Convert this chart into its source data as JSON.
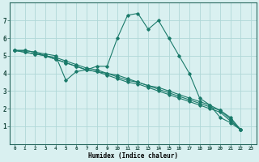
{
  "xlabel": "Humidex (Indice chaleur)",
  "ylabel": "",
  "bg_color": "#d9f0f0",
  "line_color": "#1a7a6a",
  "grid_color": "#b0d8d8",
  "xlim": [
    -0.5,
    23.5
  ],
  "ylim": [
    0,
    8
  ],
  "xticks": [
    0,
    1,
    2,
    3,
    4,
    5,
    6,
    7,
    8,
    9,
    10,
    11,
    12,
    13,
    14,
    15,
    16,
    17,
    18,
    19,
    20,
    21,
    22,
    23
  ],
  "yticks": [
    1,
    2,
    3,
    4,
    5,
    6,
    7
  ],
  "series": [
    [
      5.3,
      5.3,
      5.2,
      5.1,
      5.0,
      3.6,
      4.1,
      4.2,
      4.4,
      4.4,
      6.0,
      7.3,
      7.4,
      6.5,
      7.0,
      6.0,
      5.0,
      4.0,
      2.6,
      2.2,
      1.5,
      1.2,
      0.8
    ],
    [
      5.3,
      5.3,
      5.2,
      5.0,
      4.8,
      4.6,
      4.4,
      4.2,
      4.1,
      4.0,
      3.8,
      3.6,
      3.5,
      3.3,
      3.1,
      2.9,
      2.7,
      2.5,
      2.3,
      2.1,
      1.9,
      1.4,
      0.8
    ],
    [
      5.3,
      5.2,
      5.1,
      5.0,
      4.8,
      4.6,
      4.4,
      4.2,
      4.1,
      3.9,
      3.7,
      3.5,
      3.4,
      3.2,
      3.0,
      2.8,
      2.6,
      2.4,
      2.2,
      2.0,
      1.8,
      1.3,
      0.8
    ],
    [
      5.3,
      5.2,
      5.1,
      5.0,
      4.9,
      4.7,
      4.5,
      4.3,
      4.2,
      4.0,
      3.9,
      3.7,
      3.5,
      3.3,
      3.2,
      3.0,
      2.8,
      2.6,
      2.4,
      2.2,
      1.9,
      1.5,
      0.8
    ]
  ]
}
